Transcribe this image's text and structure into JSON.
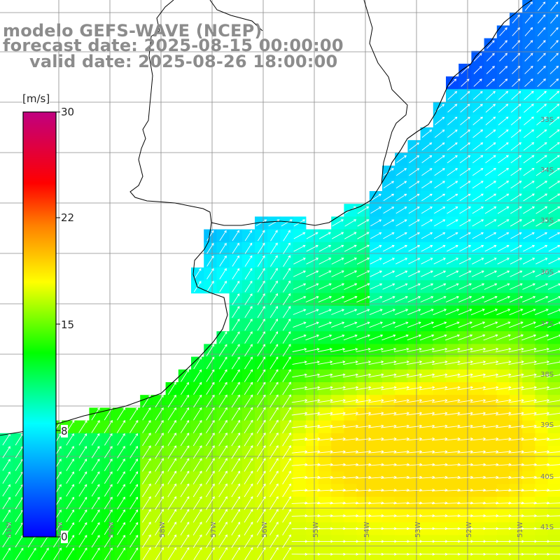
{
  "title": {
    "line1": "modelo GEFS-WAVE (NCEP)",
    "line2": "forecast date: 2025-08-15 00:00:00",
    "line3": "valid date: 2025-08-26 18:00:00"
  },
  "colorbar": {
    "unit": "[m/s]",
    "ticks": [
      "30",
      "22",
      "15",
      "8",
      "0"
    ],
    "tick_values": [
      30,
      22,
      15,
      8,
      0
    ],
    "range": [
      0,
      30
    ],
    "colors": [
      "#0000ff",
      "#00ffff",
      "#00ff00",
      "#ffff00",
      "#ff8000",
      "#ff0000",
      "#c00080"
    ]
  },
  "lat_labels": [
    "33S",
    "34S",
    "35S",
    "36S",
    "37S",
    "38S",
    "39S",
    "40S",
    "41S"
  ],
  "lon_labels": [
    "61W",
    "60W",
    "59W",
    "58W",
    "57W",
    "56W",
    "55W",
    "54W",
    "53W",
    "52W",
    "51W"
  ],
  "map": {
    "land_color": "#ffffff",
    "coast_color": "#000000",
    "grid_color": "#999999",
    "arrow_color": "#ffffff",
    "field": "wind speed and direction"
  }
}
